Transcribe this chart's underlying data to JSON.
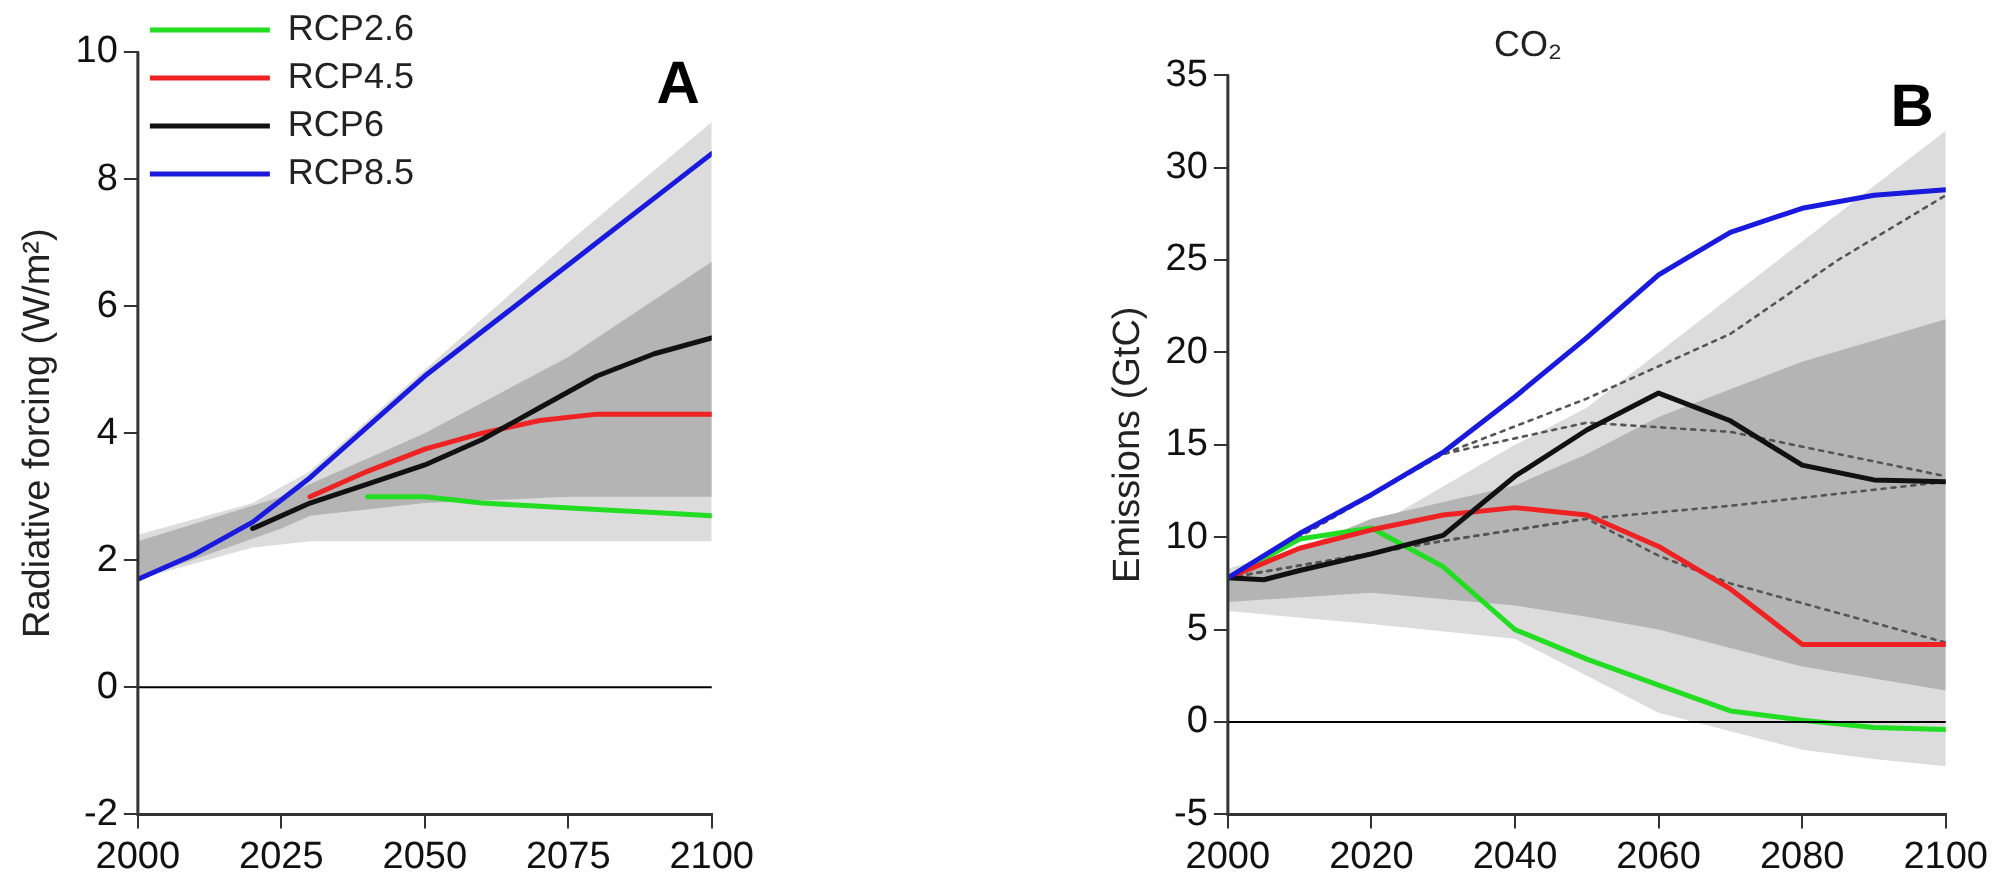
{
  "chart_data": [
    {
      "type": "line",
      "ylabel": "Radiative forcing (W/m²)",
      "annotations": [
        "A"
      ],
      "legend": "top left",
      "grid": false,
      "marker": "none",
      "xlim": [
        2000,
        2100
      ],
      "xticks": [
        2000,
        2025,
        2050,
        2075,
        2100
      ],
      "ylim": [
        -2,
        10
      ],
      "yticks": [
        -2,
        0,
        2,
        4,
        6,
        8,
        10
      ],
      "ref_lines": [
        {
          "axis": "y",
          "value": 0,
          "color": "#000000"
        }
      ],
      "series": [
        {
          "color": "#dcdcdc",
          "x": [
            2000,
            2020,
            2030,
            2050,
            2075,
            2100
          ],
          "values": [
            null,
            null,
            null,
            null,
            null,
            null
          ],
          "lower": [
            1.7,
            2.2,
            2.3,
            2.3,
            2.3,
            2.3
          ],
          "upper": [
            2.4,
            2.9,
            3.4,
            5.0,
            7.0,
            8.9
          ]
        },
        {
          "color": "#b4b4b4",
          "x": [
            2000,
            2025,
            2030,
            2050,
            2075,
            2100
          ],
          "values": [
            null,
            null,
            null,
            null,
            null,
            null
          ],
          "lower": [
            1.7,
            2.5,
            2.7,
            2.9,
            3.0,
            3.0
          ],
          "upper": [
            2.3,
            3.0,
            3.2,
            4.0,
            5.2,
            6.7
          ]
        },
        {
          "name": "RCP2.6",
          "color": "#22dd22",
          "x": [
            2040,
            2050,
            2060,
            2070,
            2080,
            2090,
            2100
          ],
          "values": [
            3.0,
            3.0,
            2.9,
            2.85,
            2.8,
            2.75,
            2.7
          ]
        },
        {
          "name": "RCP4.5",
          "color": "#ee2222",
          "x": [
            2030,
            2040,
            2050,
            2060,
            2070,
            2080,
            2090,
            2100
          ],
          "values": [
            3.0,
            3.4,
            3.75,
            4.0,
            4.2,
            4.3,
            4.3,
            4.3
          ]
        },
        {
          "name": "RCP6",
          "color": "#111111",
          "x": [
            2020,
            2030,
            2040,
            2050,
            2060,
            2070,
            2080,
            2090,
            2100
          ],
          "values": [
            2.5,
            2.9,
            3.2,
            3.5,
            3.9,
            4.4,
            4.9,
            5.25,
            5.5
          ]
        },
        {
          "name": "RCP8.5",
          "color": "#1a1add",
          "x": [
            2000,
            2010,
            2020,
            2030,
            2040,
            2050,
            2060,
            2070,
            2080,
            2090,
            2100
          ],
          "values": [
            1.7,
            2.1,
            2.6,
            3.3,
            4.1,
            4.9,
            5.6,
            6.3,
            7.0,
            7.7,
            8.4
          ]
        }
      ]
    },
    {
      "type": "line",
      "title": "CO₂",
      "ylabel": "Emissions (GtC)",
      "annotations": [
        "B"
      ],
      "grid": false,
      "marker": "none",
      "xlim": [
        2000,
        2100
      ],
      "xticks": [
        2000,
        2020,
        2040,
        2060,
        2080,
        2100
      ],
      "ylim": [
        -5,
        35
      ],
      "yticks": [
        -5,
        0,
        5,
        10,
        15,
        20,
        25,
        30,
        35
      ],
      "ref_lines": [
        {
          "axis": "y",
          "value": 0,
          "color": "#000000"
        }
      ],
      "series": [
        {
          "color": "#dcdcdc",
          "x": [
            2000,
            2020,
            2040,
            2050,
            2060,
            2070,
            2080,
            2090,
            2100
          ],
          "values": [
            null,
            null,
            null,
            null,
            null,
            null,
            null,
            null,
            null
          ],
          "lower": [
            6.0,
            5.3,
            4.5,
            2.5,
            0.5,
            -0.5,
            -1.5,
            -2.0,
            -2.4
          ],
          "upper": [
            8.3,
            10.5,
            15.0,
            17.0,
            20.0,
            23.0,
            26.0,
            29.0,
            32.0
          ]
        },
        {
          "color": "#b4b4b4",
          "x": [
            2000,
            2020,
            2040,
            2050,
            2060,
            2070,
            2080,
            2100
          ],
          "values": [
            null,
            null,
            null,
            null,
            null,
            null,
            null,
            null
          ],
          "lower": [
            6.5,
            7.0,
            6.3,
            5.7,
            5.0,
            4.0,
            3.0,
            1.7
          ],
          "upper": [
            7.8,
            11.0,
            12.8,
            14.5,
            16.5,
            18.0,
            19.5,
            21.8
          ]
        },
        {
          "color": "#555555",
          "line_style": "dotted",
          "x": [
            2000,
            2030,
            2050,
            2070,
            2085,
            2100
          ],
          "values": [
            7.8,
            14.5,
            17.5,
            21.0,
            25.0,
            28.5
          ]
        },
        {
          "color": "#555555",
          "line_style": "dotted",
          "x": [
            2000,
            2030,
            2050,
            2070,
            2100
          ],
          "values": [
            7.8,
            14.5,
            16.2,
            15.7,
            13.3
          ]
        },
        {
          "color": "#555555",
          "line_style": "dotted",
          "x": [
            2000,
            2030,
            2050,
            2070,
            2100
          ],
          "values": [
            7.8,
            9.8,
            11.0,
            11.7,
            13.0
          ]
        },
        {
          "color": "#555555",
          "line_style": "dotted",
          "x": [
            2000,
            2030,
            2050,
            2060,
            2070,
            2100
          ],
          "values": [
            7.8,
            9.8,
            11.0,
            9.0,
            7.5,
            4.3
          ]
        },
        {
          "color": "#22dd22",
          "x": [
            2000,
            2010,
            2020,
            2030,
            2040,
            2050,
            2060,
            2070,
            2080,
            2090,
            2100
          ],
          "values": [
            7.8,
            9.9,
            10.5,
            8.4,
            5.0,
            3.4,
            2.0,
            0.6,
            0.1,
            -0.3,
            -0.4
          ]
        },
        {
          "color": "#ee2222",
          "x": [
            2000,
            2010,
            2020,
            2030,
            2040,
            2050,
            2060,
            2070,
            2080,
            2090,
            2100
          ],
          "values": [
            7.8,
            9.4,
            10.4,
            11.2,
            11.6,
            11.2,
            9.5,
            7.2,
            4.2,
            4.2,
            4.2
          ]
        },
        {
          "color": "#111111",
          "x": [
            2000,
            2005,
            2010,
            2020,
            2030,
            2040,
            2050,
            2060,
            2070,
            2080,
            2090,
            2100
          ],
          "values": [
            7.8,
            7.7,
            8.2,
            9.1,
            10.1,
            13.3,
            15.8,
            17.8,
            16.3,
            13.9,
            13.1,
            13.0
          ]
        },
        {
          "color": "#1a1add",
          "x": [
            2000,
            2010,
            2020,
            2030,
            2040,
            2050,
            2060,
            2070,
            2080,
            2090,
            2100
          ],
          "values": [
            7.8,
            10.2,
            12.3,
            14.6,
            17.6,
            20.8,
            24.2,
            26.5,
            27.8,
            28.5,
            28.8
          ]
        }
      ]
    }
  ]
}
